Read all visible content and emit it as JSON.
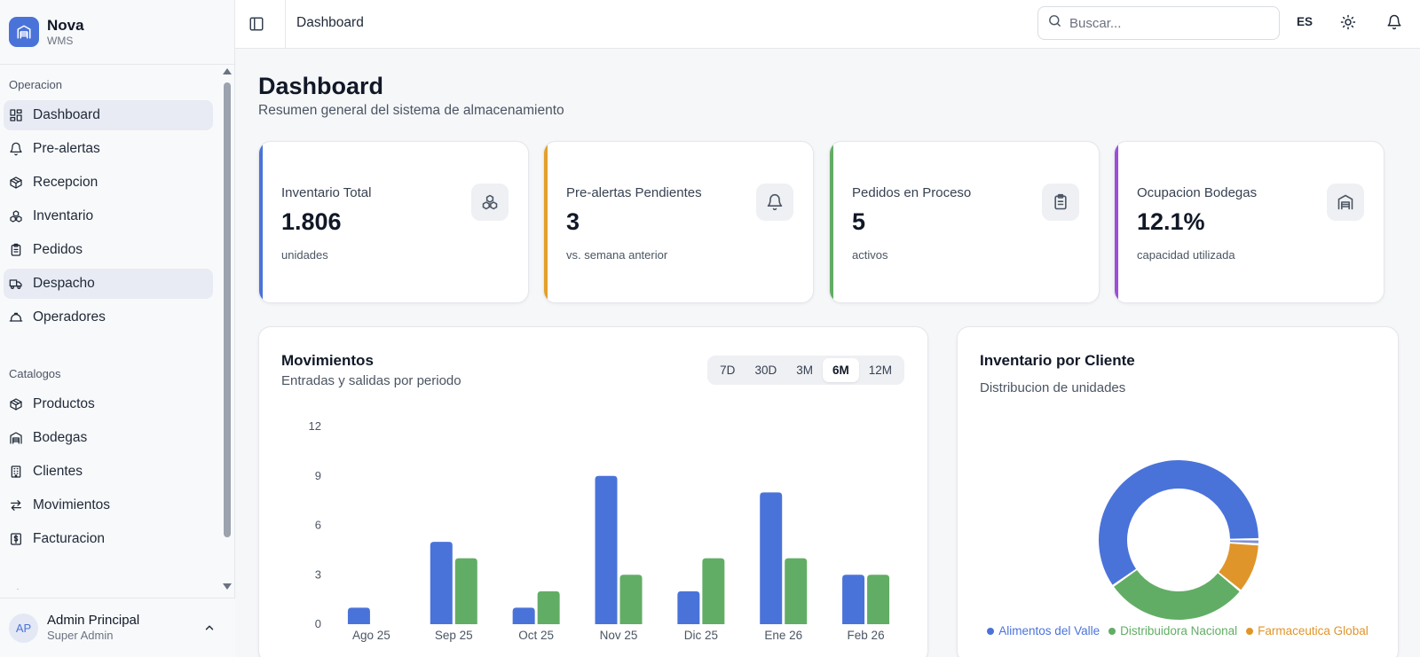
{
  "app": {
    "name": "Nova",
    "subtitle": "WMS"
  },
  "sidebar": {
    "sections": [
      {
        "label": "Operacion",
        "items": [
          {
            "label": "Dashboard",
            "icon": "grid-icon",
            "active": true
          },
          {
            "label": "Pre-alertas",
            "icon": "bell-icon"
          },
          {
            "label": "Recepcion",
            "icon": "package-icon"
          },
          {
            "label": "Inventario",
            "icon": "boxes-icon"
          },
          {
            "label": "Pedidos",
            "icon": "clipboard-icon"
          },
          {
            "label": "Despacho",
            "icon": "truck-icon",
            "active": true
          },
          {
            "label": "Operadores",
            "icon": "hard-hat-icon"
          }
        ]
      },
      {
        "label": "Catalogos",
        "items": [
          {
            "label": "Productos",
            "icon": "package-icon"
          },
          {
            "label": "Bodegas",
            "icon": "warehouse-icon"
          },
          {
            "label": "Clientes",
            "icon": "building-icon"
          },
          {
            "label": "Movimientos",
            "icon": "arrows-icon"
          },
          {
            "label": "Facturacion",
            "icon": "receipt-icon"
          }
        ]
      },
      {
        "label": "Sistema",
        "items": []
      }
    ]
  },
  "user": {
    "initials": "AP",
    "name": "Admin Principal",
    "role": "Super Admin"
  },
  "topbar": {
    "breadcrumb": "Dashboard",
    "search_placeholder": "Buscar...",
    "language": "ES"
  },
  "page": {
    "title": "Dashboard",
    "subtitle": "Resumen general del sistema de almacenamiento"
  },
  "stats": [
    {
      "label": "Inventario Total",
      "value": "1.806",
      "note": "unidades",
      "color": "#4a73d9",
      "icon": "boxes-icon"
    },
    {
      "label": "Pre-alertas Pendientes",
      "value": "3",
      "note": "vs. semana anterior",
      "color": "#e3a02b",
      "icon": "bell-icon"
    },
    {
      "label": "Pedidos en Proceso",
      "value": "5",
      "note": "activos",
      "color": "#62ad65",
      "icon": "clipboard-icon"
    },
    {
      "label": "Ocupacion Bodegas",
      "value": "12.1%",
      "note": "capacidad utilizada",
      "color": "#9b4fd9",
      "icon": "warehouse-icon"
    }
  ],
  "movements": {
    "title": "Movimientos",
    "subtitle": "Entradas y salidas por periodo",
    "ranges": [
      "7D",
      "30D",
      "3M",
      "6M",
      "12M"
    ],
    "active_range": "6M"
  },
  "clients": {
    "title": "Inventario por Cliente",
    "subtitle": "Distribucion de unidades"
  },
  "chart_data": [
    {
      "type": "bar",
      "categories": [
        "Ago 25",
        "Sep 25",
        "Oct 25",
        "Nov 25",
        "Dic 25",
        "Ene 26",
        "Feb 26"
      ],
      "series": [
        {
          "values": [
            1,
            5,
            1,
            9,
            2,
            8,
            3
          ],
          "color": "#4a73d9"
        },
        {
          "values": [
            0,
            4,
            2,
            3,
            4,
            4,
            3
          ],
          "color": "#62ad65"
        }
      ],
      "ylim": [
        0,
        12
      ],
      "yticks": [
        0,
        3,
        6,
        9,
        12
      ],
      "grid": false
    },
    {
      "type": "pie",
      "donut": true,
      "slices": [
        {
          "label": "Alimentos del Valle",
          "value": 59,
          "color": "#4a73d9"
        },
        {
          "label": "Distribuidora Nacional",
          "value": 29,
          "color": "#62ad65"
        },
        {
          "label": "Farmaceutica Global",
          "value": 10,
          "color": "#e0952a"
        },
        {
          "label": "",
          "value": 1,
          "color": "#7c8fd6"
        }
      ]
    }
  ]
}
